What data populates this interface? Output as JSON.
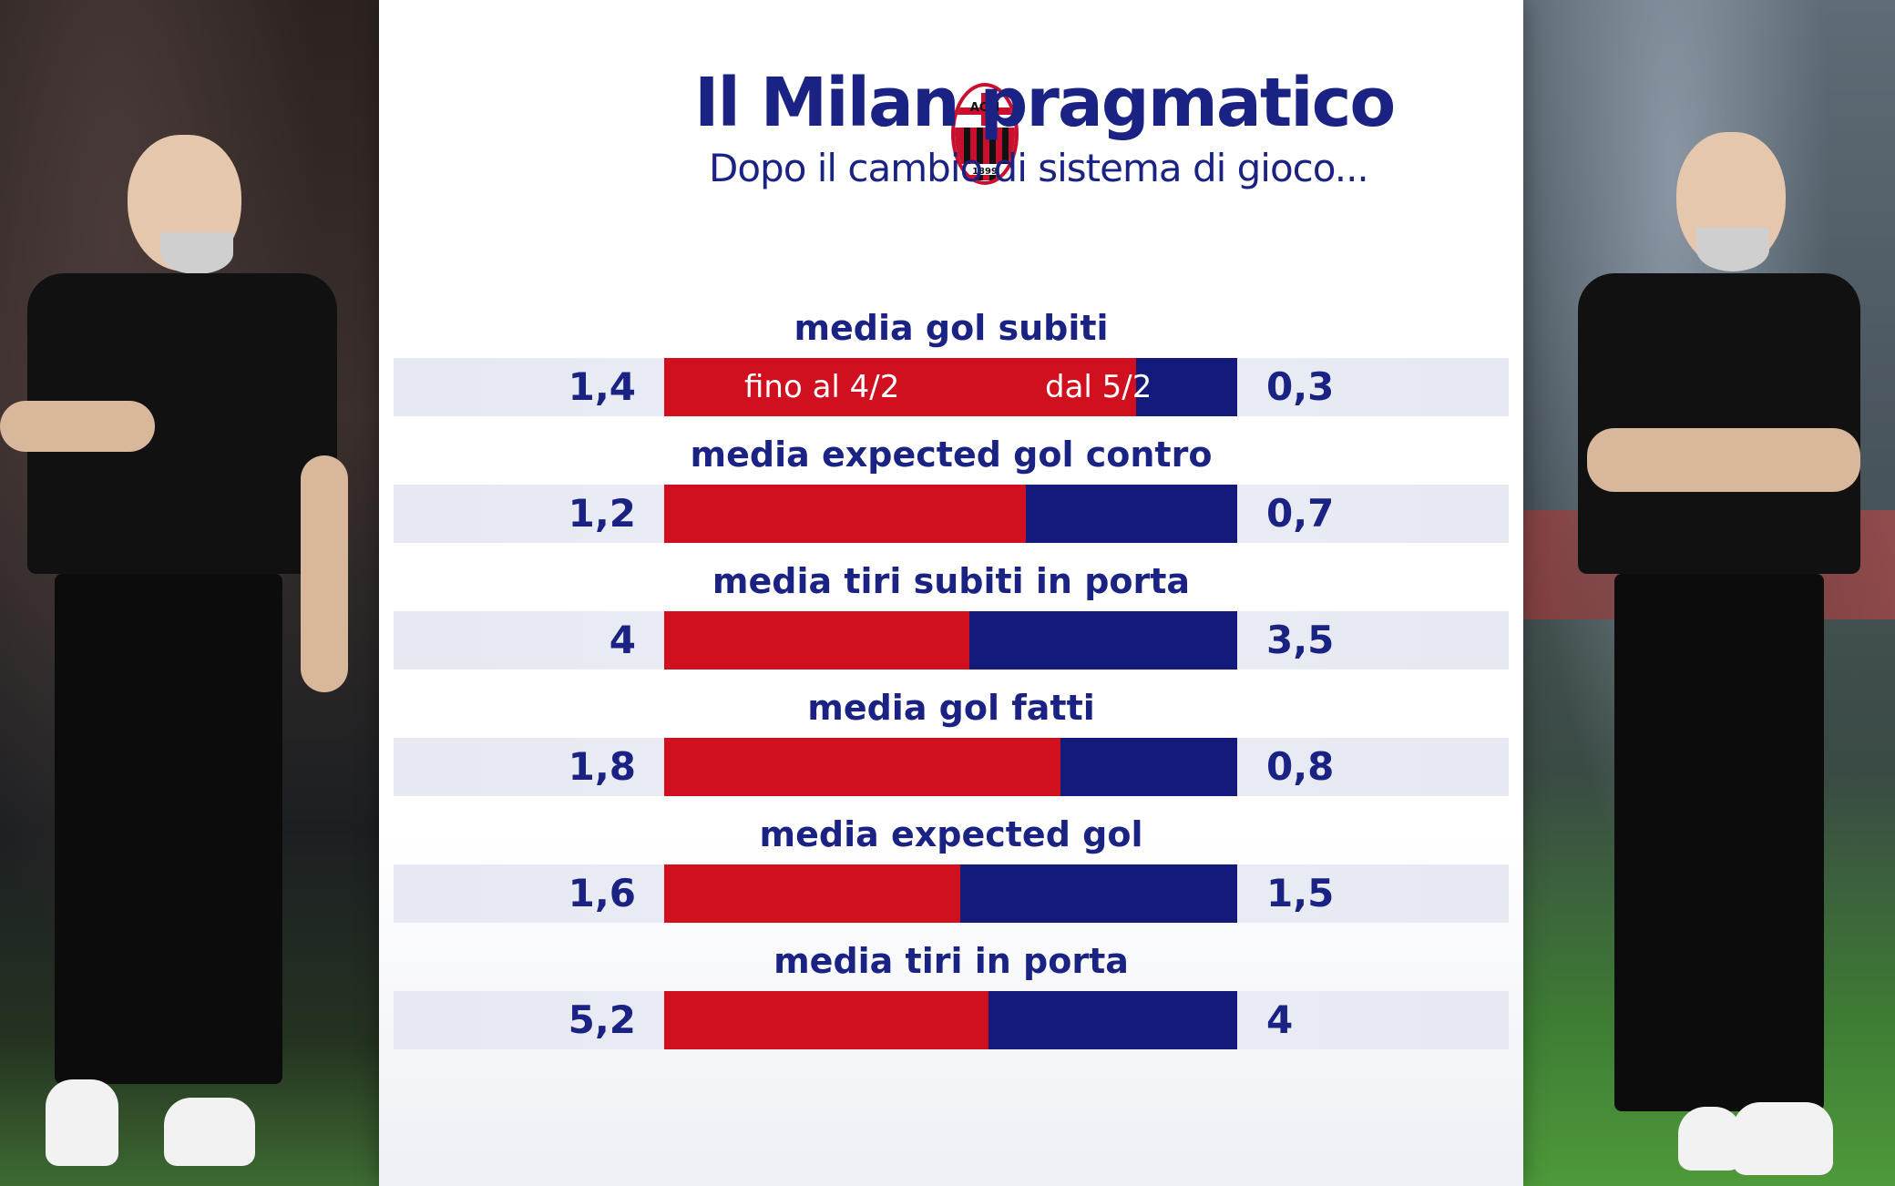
{
  "header": {
    "title": "Il Milan pragmatico",
    "subtitle": "Dopo il cambio di sistema di gioco..."
  },
  "logo": {
    "name": "ac-milan-crest-icon",
    "text": "ACM",
    "year": "1899"
  },
  "legend": {
    "before": "fino al 4/2",
    "after": "dal 5/2"
  },
  "colors": {
    "before": "#d1101f",
    "after": "#141a7a",
    "text": "#1a2384"
  },
  "chart_data": {
    "type": "bar",
    "title": "Il Milan pragmatico",
    "subtitle": "Dopo il cambio di sistema di gioco...",
    "categories": [
      "media gol subiti",
      "media expected gol contro",
      "media tiri subiti in porta",
      "media gol fatti",
      "media expected gol",
      "media tiri in porta"
    ],
    "series": [
      {
        "name": "fino al 4/2",
        "values": [
          1.4,
          1.2,
          4,
          1.8,
          1.6,
          5.2
        ],
        "labels": [
          "1,4",
          "1,2",
          "4",
          "1,8",
          "1,6",
          "5,2"
        ]
      },
      {
        "name": "dal 5/2",
        "values": [
          0.3,
          0.7,
          3.5,
          0.8,
          1.5,
          4
        ],
        "labels": [
          "0,3",
          "0,7",
          "3,5",
          "0,8",
          "1,5",
          "4"
        ]
      }
    ],
    "stacked": "100%"
  }
}
